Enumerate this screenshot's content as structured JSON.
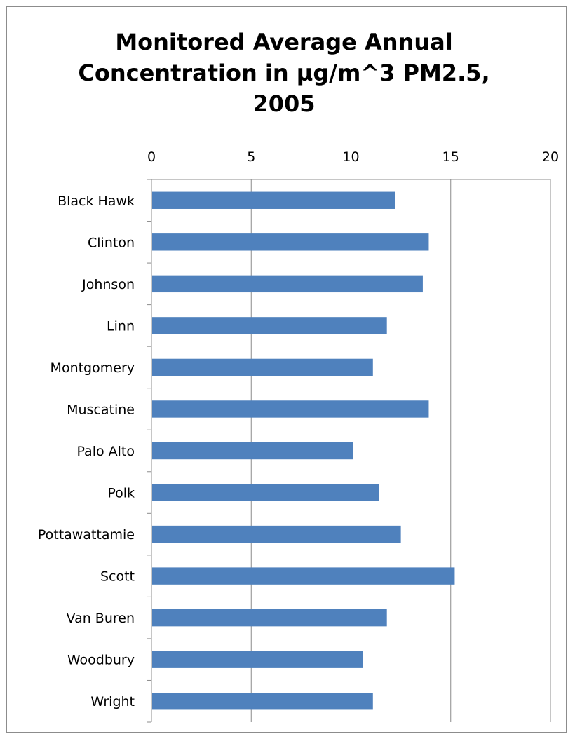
{
  "chart_data": {
    "type": "bar",
    "orientation": "horizontal",
    "title_lines": [
      "Monitored Average Annual",
      "Concentration in µg/m^3 PM2.5,",
      "2005"
    ],
    "xlabel": "",
    "ylabel": "",
    "xlim": [
      0,
      20
    ],
    "x_ticks": [
      0,
      5,
      10,
      15,
      20
    ],
    "x_axis_position": "top",
    "grid": true,
    "legend": "none",
    "bar_color": "#4f81bd",
    "categories": [
      "Black Hawk",
      "Clinton",
      "Johnson",
      "Linn",
      "Montgomery",
      "Muscatine",
      "Palo Alto",
      "Polk",
      "Pottawattamie",
      "Scott",
      "Van Buren",
      "Woodbury",
      "Wright"
    ],
    "values": [
      12.2,
      13.9,
      13.6,
      11.8,
      11.1,
      13.9,
      10.1,
      11.4,
      12.5,
      15.2,
      11.8,
      10.6,
      11.1
    ]
  }
}
